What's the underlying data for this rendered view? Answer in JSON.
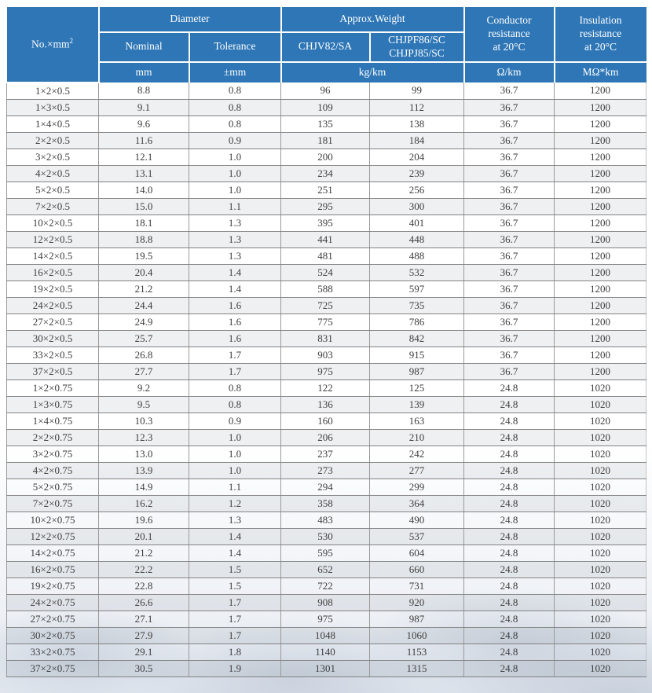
{
  "colors": {
    "header_bg": "#2e76b6",
    "header_text": "#ffffff",
    "row_line": "#828282",
    "stripe": "#ededed"
  },
  "table": {
    "header": {
      "no_col": {
        "text": "No.×mm",
        "sup": "2"
      },
      "diameter": "Diameter",
      "approx_weight": "Approx.Weight",
      "conductor_resistance": "Conductor\nresistance\nat 20°C",
      "insulation_resistance": "Insulation\nresistance\nat 20°C",
      "nominal": "Nominal",
      "tolerance": "Tolerance",
      "weight_col_1": "CHJV82/SA",
      "weight_col_2": "CHJPF86/SC\nCHJPJ85/SC",
      "units": {
        "nominal": "mm",
        "tolerance": "±mm",
        "weight": "kg/km",
        "conductor": "Ω/km",
        "insulation": "MΩ*km"
      }
    },
    "rows": [
      [
        "1×2×0.5",
        "8.8",
        "0.8",
        "96",
        "99",
        "36.7",
        "1200"
      ],
      [
        "1×3×0.5",
        "9.1",
        "0.8",
        "109",
        "112",
        "36.7",
        "1200"
      ],
      [
        "1×4×0.5",
        "9.6",
        "0.8",
        "135",
        "138",
        "36.7",
        "1200"
      ],
      [
        "2×2×0.5",
        "11.6",
        "0.9",
        "181",
        "184",
        "36.7",
        "1200"
      ],
      [
        "3×2×0.5",
        "12.1",
        "1.0",
        "200",
        "204",
        "36.7",
        "1200"
      ],
      [
        "4×2×0.5",
        "13.1",
        "1.0",
        "234",
        "239",
        "36.7",
        "1200"
      ],
      [
        "5×2×0.5",
        "14.0",
        "1.0",
        "251",
        "256",
        "36.7",
        "1200"
      ],
      [
        "7×2×0.5",
        "15.0",
        "1.1",
        "295",
        "300",
        "36.7",
        "1200"
      ],
      [
        "10×2×0.5",
        "18.1",
        "1.3",
        "395",
        "401",
        "36.7",
        "1200"
      ],
      [
        "12×2×0.5",
        "18.8",
        "1.3",
        "441",
        "448",
        "36.7",
        "1200"
      ],
      [
        "14×2×0.5",
        "19.5",
        "1.3",
        "481",
        "488",
        "36.7",
        "1200"
      ],
      [
        "16×2×0.5",
        "20.4",
        "1.4",
        "524",
        "532",
        "36.7",
        "1200"
      ],
      [
        "19×2×0.5",
        "21.2",
        "1.4",
        "588",
        "597",
        "36.7",
        "1200"
      ],
      [
        "24×2×0.5",
        "24.4",
        "1.6",
        "725",
        "735",
        "36.7",
        "1200"
      ],
      [
        "27×2×0.5",
        "24.9",
        "1.6",
        "775",
        "786",
        "36.7",
        "1200"
      ],
      [
        "30×2×0.5",
        "25.7",
        "1.6",
        "831",
        "842",
        "36.7",
        "1200"
      ],
      [
        "33×2×0.5",
        "26.8",
        "1.7",
        "903",
        "915",
        "36.7",
        "1200"
      ],
      [
        "37×2×0.5",
        "27.7",
        "1.7",
        "975",
        "987",
        "36.7",
        "1200"
      ],
      [
        "1×2×0.75",
        "9.2",
        "0.8",
        "122",
        "125",
        "24.8",
        "1020"
      ],
      [
        "1×3×0.75",
        "9.5",
        "0.8",
        "136",
        "139",
        "24.8",
        "1020"
      ],
      [
        "1×4×0.75",
        "10.3",
        "0.9",
        "160",
        "163",
        "24.8",
        "1020"
      ],
      [
        "2×2×0.75",
        "12.3",
        "1.0",
        "206",
        "210",
        "24.8",
        "1020"
      ],
      [
        "3×2×0.75",
        "13.0",
        "1.0",
        "237",
        "242",
        "24.8",
        "1020"
      ],
      [
        "4×2×0.75",
        "13.9",
        "1.0",
        "273",
        "277",
        "24.8",
        "1020"
      ],
      [
        "5×2×0.75",
        "14.9",
        "1.1",
        "294",
        "299",
        "24.8",
        "1020"
      ],
      [
        "7×2×0.75",
        "16.2",
        "1.2",
        "358",
        "364",
        "24.8",
        "1020"
      ],
      [
        "10×2×0.75",
        "19.6",
        "1.3",
        "483",
        "490",
        "24.8",
        "1020"
      ],
      [
        "12×2×0.75",
        "20.1",
        "1.4",
        "530",
        "537",
        "24.8",
        "1020"
      ],
      [
        "14×2×0.75",
        "21.2",
        "1.4",
        "595",
        "604",
        "24.8",
        "1020"
      ],
      [
        "16×2×0.75",
        "22.2",
        "1.5",
        "652",
        "660",
        "24.8",
        "1020"
      ],
      [
        "19×2×0.75",
        "22.8",
        "1.5",
        "722",
        "731",
        "24.8",
        "1020"
      ],
      [
        "24×2×0.75",
        "26.6",
        "1.7",
        "908",
        "920",
        "24.8",
        "1020"
      ],
      [
        "27×2×0.75",
        "27.1",
        "1.7",
        "975",
        "987",
        "24.8",
        "1020"
      ],
      [
        "30×2×0.75",
        "27.9",
        "1.7",
        "1048",
        "1060",
        "24.8",
        "1020"
      ],
      [
        "33×2×0.75",
        "29.1",
        "1.8",
        "1140",
        "1153",
        "24.8",
        "1020"
      ],
      [
        "37×2×0.75",
        "30.5",
        "1.9",
        "1301",
        "1315",
        "24.8",
        "1020"
      ]
    ]
  }
}
